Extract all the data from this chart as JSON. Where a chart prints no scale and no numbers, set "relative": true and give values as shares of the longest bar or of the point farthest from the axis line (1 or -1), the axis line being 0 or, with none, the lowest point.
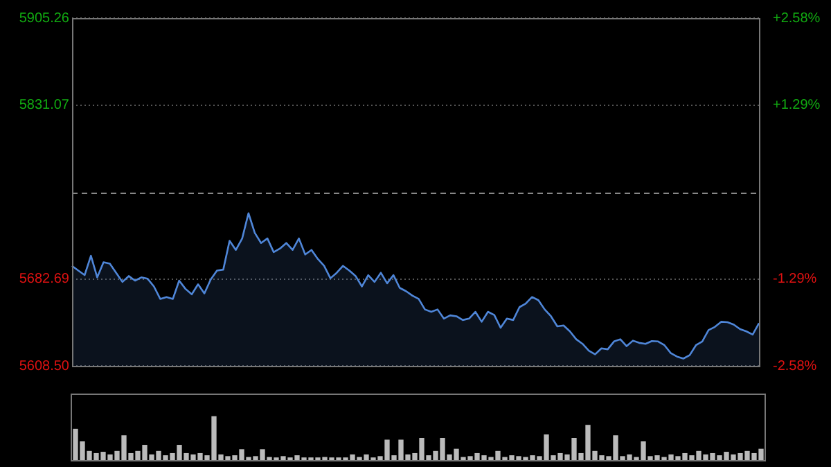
{
  "chart_data": [
    {
      "type": "area",
      "color": "#4f86d8",
      "grid": "y",
      "tick_labels": "y",
      "categories": [
        null,
        null,
        null,
        null,
        null,
        null,
        null,
        null,
        null,
        null,
        null,
        null,
        null,
        null,
        null,
        null,
        null,
        null,
        null,
        null,
        null,
        null,
        null,
        null,
        null,
        null,
        null,
        null,
        null,
        null,
        null,
        null,
        null,
        null,
        null,
        null,
        null,
        null,
        null,
        null,
        null,
        null,
        null,
        null,
        null,
        null,
        null,
        null,
        null,
        null,
        null,
        null,
        null,
        null,
        null,
        null,
        null,
        null,
        null,
        null,
        null,
        null,
        null,
        null,
        null,
        null,
        null,
        null,
        null,
        null,
        null,
        null,
        null,
        null,
        null,
        null,
        null,
        null,
        null,
        null,
        null,
        null,
        null,
        null,
        null,
        null,
        null,
        null,
        null,
        null,
        null,
        null,
        null,
        null,
        null,
        null,
        null,
        null,
        null,
        null,
        null,
        null,
        null,
        null,
        null,
        null,
        null,
        null,
        null,
        null
      ],
      "values": [
        5693.8,
        5689.8,
        5685.9,
        5702.4,
        5684.0,
        5696.9,
        5695.7,
        5687.9,
        5680.1,
        5685.1,
        5681.2,
        5684.0,
        5682.8,
        5676.2,
        5665.6,
        5667.2,
        5665.6,
        5681.2,
        5674.2,
        5669.5,
        5678.1,
        5670.3,
        5682.1,
        5689.8,
        5690.6,
        5715.2,
        5707.4,
        5717.2,
        5738.7,
        5721.9,
        5713.3,
        5717.2,
        5705.5,
        5708.6,
        5713.3,
        5707.4,
        5717.2,
        5703.5,
        5707.4,
        5699.7,
        5693.8,
        5683.2,
        5687.9,
        5693.8,
        5689.8,
        5685.1,
        5676.2,
        5685.9,
        5680.1,
        5687.9,
        5678.9,
        5685.9,
        5675.0,
        5672.2,
        5668.4,
        5665.6,
        5656.6,
        5654.6,
        5656.6,
        5648.8,
        5651.6,
        5650.8,
        5647.6,
        5648.8,
        5654.6,
        5646.1,
        5654.6,
        5651.9,
        5641.0,
        5648.8,
        5647.6,
        5658.6,
        5661.7,
        5667.2,
        5664.5,
        5656.6,
        5650.8,
        5642.2,
        5642.9,
        5637.9,
        5631.2,
        5627.3,
        5621.4,
        5618.3,
        5623.4,
        5622.6,
        5629.3,
        5631.2,
        5625.3,
        5630.0,
        5628.1,
        5627.3,
        5629.6,
        5629.3,
        5626.1,
        5619.4,
        5616.4,
        5614.7,
        5617.6,
        5626.1,
        5629.3,
        5639.0,
        5641.7,
        5646.1,
        5645.7,
        5643.7,
        5639.8,
        5637.9,
        5635.2,
        5644.9
      ],
      "ylim": [
        5608.5,
        5905.26
      ],
      "yticks": [
        {
          "value": 5608.5,
          "label": "5608.50"
        },
        5682.69,
        5831.07,
        5905.26
      ],
      "y2lim": [
        -2.58,
        2.58
      ],
      "y2ticks": [
        {
          "value": -2.58,
          "label": "-2.58%"
        },
        {
          "value": -1.29,
          "label": "-1.29%"
        },
        {
          "value": 1.29,
          "label": "+1.29%"
        },
        {
          "value": 2.58,
          "label": "+2.58%"
        }
      ],
      "ref_lines": [
        {
          "axis": "y",
          "value": 5756.88,
          "color": "#888888",
          "line_style": "dashed"
        }
      ]
    },
    {
      "type": "bar",
      "relative": true,
      "color": "#bbbbbb",
      "tick_labels": false,
      "categories": [
        null,
        null,
        null,
        null,
        null,
        null,
        null,
        null,
        null,
        null,
        null,
        null,
        null,
        null,
        null,
        null,
        null,
        null,
        null,
        null,
        null,
        null,
        null,
        null,
        null,
        null,
        null,
        null,
        null,
        null,
        null,
        null,
        null,
        null,
        null,
        null,
        null,
        null,
        null,
        null,
        null,
        null,
        null,
        null,
        null,
        null,
        null,
        null,
        null,
        null,
        null,
        null,
        null,
        null,
        null,
        null,
        null,
        null,
        null,
        null,
        null,
        null,
        null,
        null,
        null,
        null,
        null,
        null,
        null,
        null,
        null,
        null,
        null,
        null,
        null,
        null,
        null,
        null,
        null,
        null,
        null,
        null,
        null,
        null,
        null,
        null,
        null,
        null,
        null,
        null,
        null,
        null,
        null,
        null,
        null,
        null,
        null,
        null,
        null,
        null
      ],
      "values": [
        0.71,
        0.42,
        0.2,
        0.15,
        0.18,
        0.12,
        0.2,
        0.56,
        0.15,
        0.2,
        0.34,
        0.12,
        0.2,
        0.1,
        0.15,
        0.34,
        0.15,
        0.12,
        0.15,
        0.1,
        1,
        0.12,
        0.08,
        0.1,
        0.24,
        0.06,
        0.08,
        0.24,
        0.06,
        0.05,
        0.08,
        0.05,
        0.1,
        0.05,
        0.05,
        0.05,
        0.06,
        0.05,
        0.05,
        0.05,
        0.12,
        0.06,
        0.12,
        0.05,
        0.08,
        0.46,
        0.1,
        0.46,
        0.12,
        0.15,
        0.5,
        0.1,
        0.2,
        0.5,
        0.12,
        0.25,
        0.06,
        0.08,
        0.15,
        0.1,
        0.06,
        0.2,
        0.06,
        0.1,
        0.08,
        0.06,
        0.1,
        0.08,
        0.58,
        0.1,
        0.15,
        0.12,
        0.5,
        0.15,
        0.8,
        0.2,
        0.1,
        0.08,
        0.56,
        0.08,
        0.12,
        0.06,
        0.42,
        0.08,
        0.1,
        0.06,
        0.12,
        0.08,
        0.15,
        0.1,
        0.2,
        0.12,
        0.15,
        0.1,
        0.18,
        0.12,
        0.15,
        0.2,
        0.15,
        0.25
      ]
    }
  ]
}
